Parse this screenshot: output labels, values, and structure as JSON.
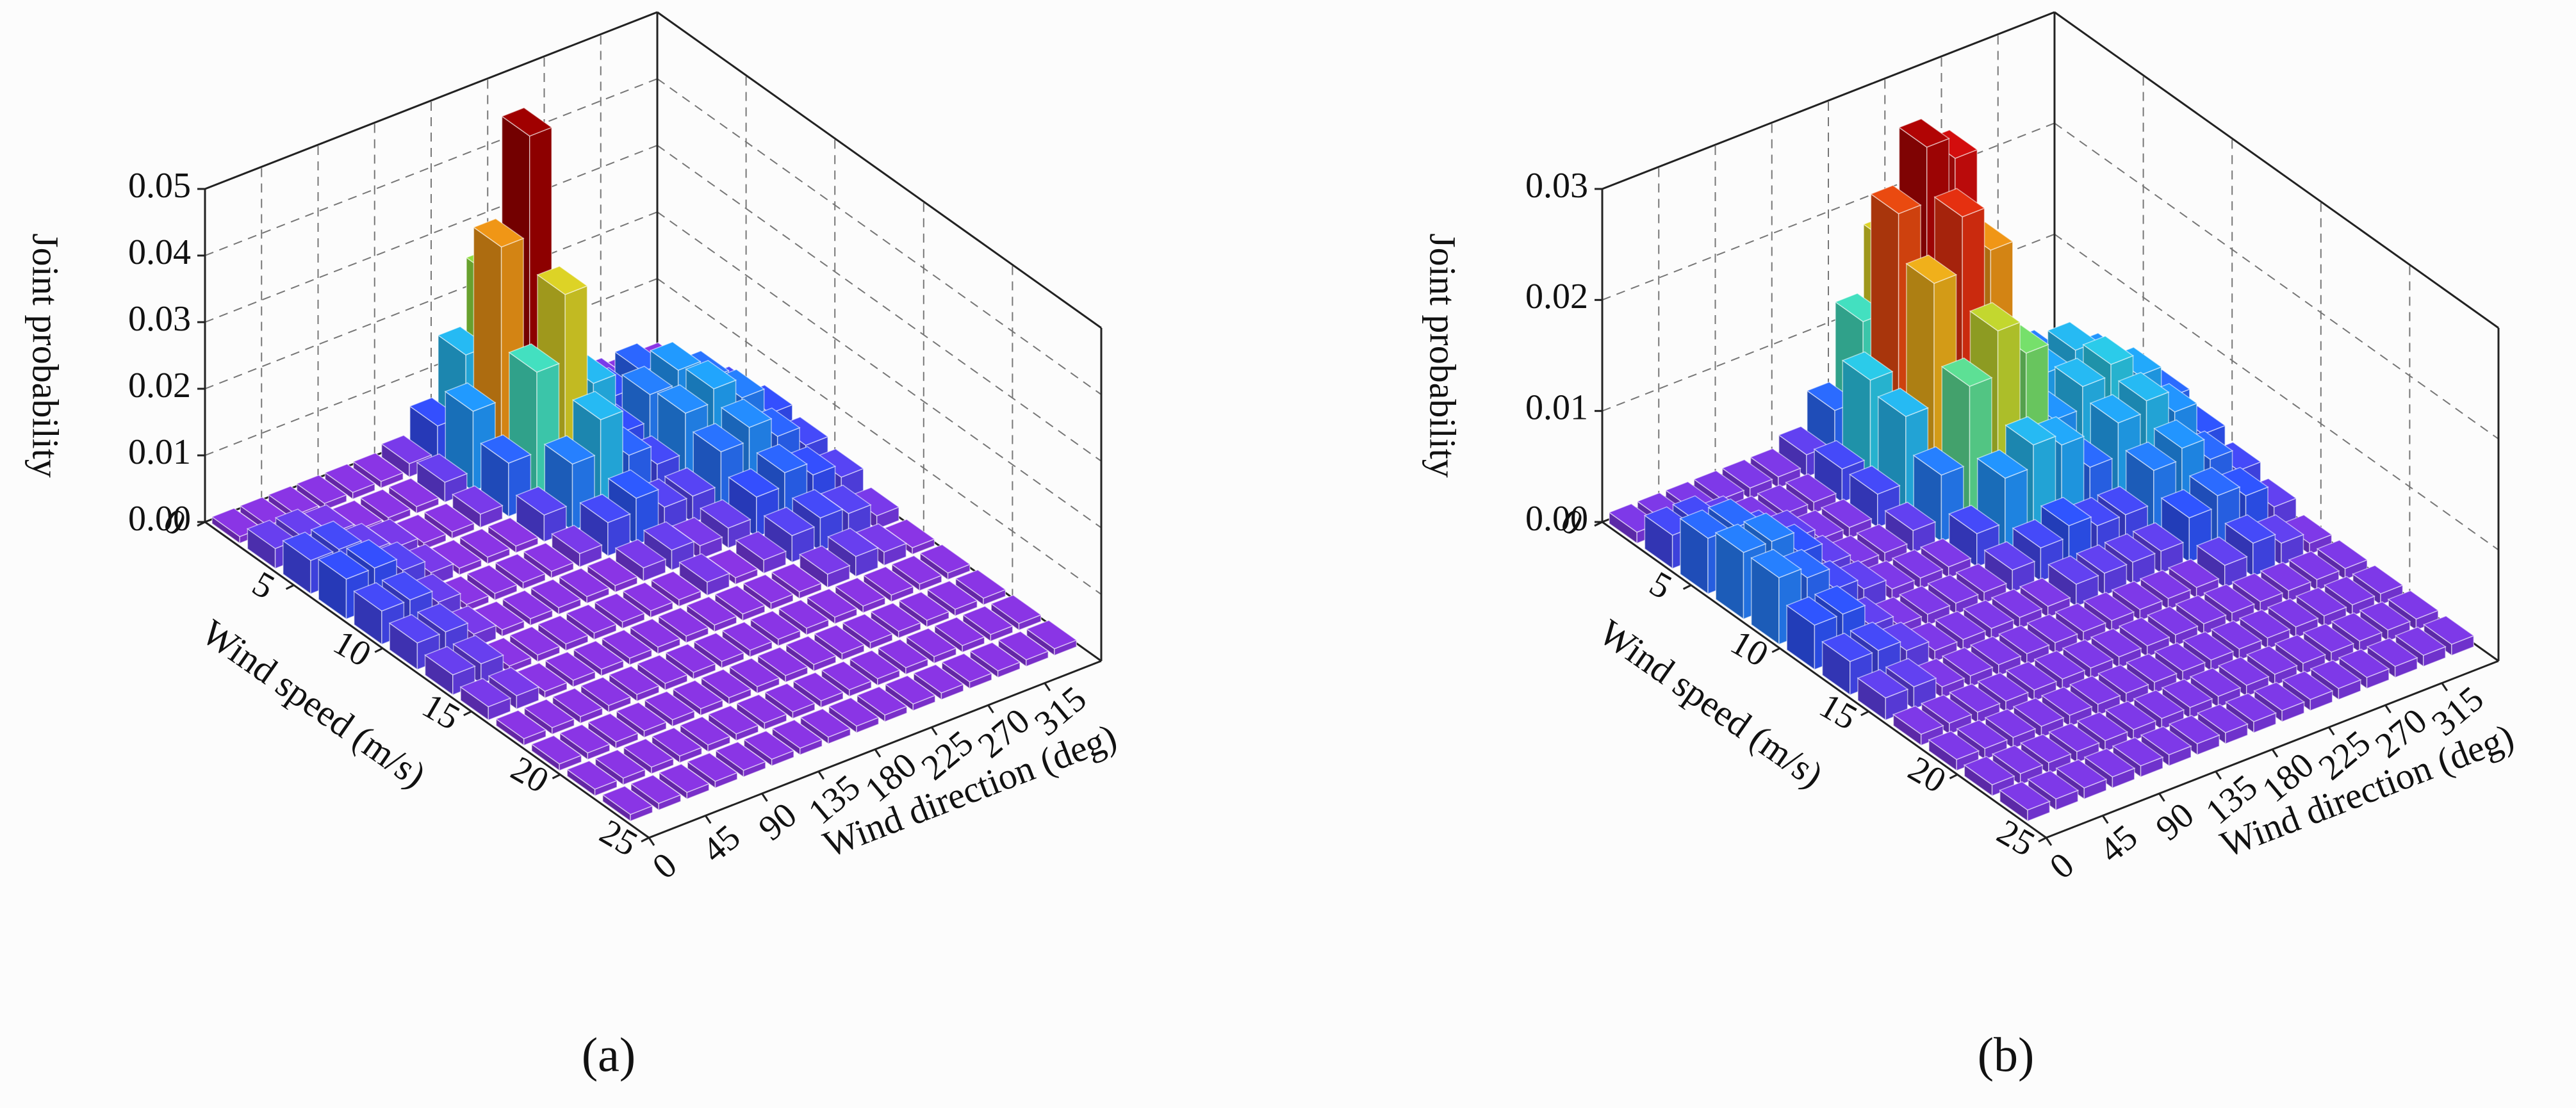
{
  "chart_data": [
    {
      "type": "bar3d",
      "caption": "(a)",
      "x_label": "Wind speed (m/s)",
      "y_label": "Wind direction (deg)",
      "z_label": "Joint probability",
      "xlim": [
        0,
        25
      ],
      "xticks": [
        0,
        5,
        10,
        15,
        20,
        25
      ],
      "ylim": [
        0,
        360
      ],
      "yticks": [
        0,
        45,
        90,
        135,
        180,
        225,
        270,
        315
      ],
      "zlim": [
        0,
        0.05
      ],
      "zticks": [
        {
          "value": 0,
          "label": "0.00"
        },
        {
          "value": 0.01,
          "label": "0.01"
        },
        {
          "value": 0.02,
          "label": "0.02"
        },
        {
          "value": 0.03,
          "label": "0.03"
        },
        {
          "value": 0.04,
          "label": "0.04"
        },
        {
          "value": 0.05,
          "label": "0.05"
        }
      ],
      "grid": true,
      "colormap": [
        "#9b30e0",
        "#3050ff",
        "#20a0ff",
        "#30e0e0",
        "#90e040",
        "#f0d020",
        "#f07010",
        "#e01010",
        "#a00000"
      ],
      "speed_bins": [
        0,
        2,
        4,
        6,
        8,
        10,
        12,
        14,
        16,
        18,
        20,
        22,
        24
      ],
      "direction_bins": [
        0,
        22.5,
        45,
        67.5,
        90,
        112.5,
        135,
        157.5,
        180,
        202.5,
        225,
        247.5,
        270,
        292.5,
        315,
        337.5,
        360
      ],
      "values": [
        [
          0.001,
          0.001,
          0.001,
          0.001,
          0.001,
          0.001,
          0.002,
          0.006,
          0.015,
          0.025,
          0.012,
          0.003,
          0.002,
          0.002,
          0.001,
          0.001
        ],
        [
          0.003,
          0.003,
          0.002,
          0.001,
          0.001,
          0.001,
          0.003,
          0.012,
          0.035,
          0.05,
          0.022,
          0.006,
          0.006,
          0.008,
          0.005,
          0.003
        ],
        [
          0.005,
          0.005,
          0.003,
          0.002,
          0.001,
          0.001,
          0.002,
          0.008,
          0.02,
          0.03,
          0.015,
          0.006,
          0.01,
          0.012,
          0.009,
          0.005
        ],
        [
          0.006,
          0.006,
          0.004,
          0.002,
          0.001,
          0.001,
          0.001,
          0.004,
          0.01,
          0.015,
          0.008,
          0.005,
          0.011,
          0.013,
          0.01,
          0.006
        ],
        [
          0.005,
          0.005,
          0.003,
          0.001,
          0.001,
          0.001,
          0.001,
          0.002,
          0.005,
          0.007,
          0.004,
          0.004,
          0.009,
          0.011,
          0.008,
          0.005
        ],
        [
          0.004,
          0.004,
          0.002,
          0.001,
          0.001,
          0.001,
          0.001,
          0.001,
          0.002,
          0.003,
          0.002,
          0.003,
          0.006,
          0.008,
          0.006,
          0.004
        ],
        [
          0.003,
          0.003,
          0.001,
          0.001,
          0.001,
          0.001,
          0.001,
          0.001,
          0.001,
          0.002,
          0.001,
          0.002,
          0.004,
          0.005,
          0.004,
          0.002
        ],
        [
          0.002,
          0.002,
          0.001,
          0.001,
          0.001,
          0.001,
          0.001,
          0.001,
          0.001,
          0.001,
          0.001,
          0.001,
          0.002,
          0.003,
          0.002,
          0.001
        ],
        [
          0.001,
          0.001,
          0.001,
          0.001,
          0.001,
          0.001,
          0.001,
          0.001,
          0.001,
          0.001,
          0.001,
          0.001,
          0.001,
          0.001,
          0.001,
          0.001
        ],
        [
          0.001,
          0.001,
          0.001,
          0.001,
          0.001,
          0.001,
          0.001,
          0.001,
          0.001,
          0.001,
          0.001,
          0.001,
          0.001,
          0.001,
          0.001,
          0.001
        ],
        [
          0.001,
          0.001,
          0.001,
          0.001,
          0.001,
          0.001,
          0.001,
          0.001,
          0.001,
          0.001,
          0.001,
          0.001,
          0.001,
          0.001,
          0.001,
          0.001
        ],
        [
          0.001,
          0.001,
          0.001,
          0.001,
          0.001,
          0.001,
          0.001,
          0.001,
          0.001,
          0.001,
          0.001,
          0.001,
          0.001,
          0.001,
          0.001,
          0.001
        ]
      ]
    },
    {
      "type": "bar3d",
      "caption": "(b)",
      "x_label": "Wind speed (m/s)",
      "y_label": "Wind direction (deg)",
      "z_label": "Joint probability",
      "xlim": [
        0,
        25
      ],
      "xticks": [
        0,
        5,
        10,
        15,
        20,
        25
      ],
      "ylim": [
        0,
        360
      ],
      "yticks": [
        0,
        45,
        90,
        135,
        180,
        225,
        270,
        315
      ],
      "zlim": [
        0,
        0.03
      ],
      "zticks": [
        {
          "value": 0,
          "label": "0.00"
        },
        {
          "value": 0.01,
          "label": "0.01"
        },
        {
          "value": 0.02,
          "label": "0.02"
        },
        {
          "value": 0.03,
          "label": "0.03"
        }
      ],
      "grid": true,
      "colormap": [
        "#9b30e0",
        "#3050ff",
        "#20a0ff",
        "#30e0e0",
        "#90e040",
        "#f0d020",
        "#f07010",
        "#e01010",
        "#a00000"
      ],
      "speed_bins": [
        0,
        2,
        4,
        6,
        8,
        10,
        12,
        14,
        16,
        18,
        20,
        22,
        24
      ],
      "direction_bins": [
        0,
        22.5,
        45,
        67.5,
        90,
        112.5,
        135,
        157.5,
        180,
        202.5,
        225,
        247.5,
        270,
        292.5,
        315,
        337.5,
        360
      ],
      "values": [
        [
          0.001,
          0.001,
          0.001,
          0.001,
          0.001,
          0.001,
          0.002,
          0.005,
          0.012,
          0.018,
          0.014,
          0.004,
          0.002,
          0.002,
          0.001,
          0.001
        ],
        [
          0.003,
          0.003,
          0.002,
          0.001,
          0.001,
          0.001,
          0.003,
          0.01,
          0.024,
          0.029,
          0.027,
          0.01,
          0.005,
          0.006,
          0.004,
          0.002
        ],
        [
          0.005,
          0.005,
          0.003,
          0.002,
          0.001,
          0.001,
          0.003,
          0.009,
          0.02,
          0.025,
          0.021,
          0.009,
          0.008,
          0.009,
          0.007,
          0.004
        ],
        [
          0.006,
          0.006,
          0.004,
          0.002,
          0.001,
          0.001,
          0.002,
          0.006,
          0.013,
          0.017,
          0.014,
          0.007,
          0.009,
          0.01,
          0.008,
          0.005
        ],
        [
          0.006,
          0.005,
          0.003,
          0.002,
          0.001,
          0.001,
          0.001,
          0.003,
          0.007,
          0.009,
          0.008,
          0.005,
          0.008,
          0.009,
          0.007,
          0.004
        ],
        [
          0.004,
          0.004,
          0.002,
          0.001,
          0.001,
          0.001,
          0.001,
          0.002,
          0.003,
          0.004,
          0.003,
          0.003,
          0.006,
          0.007,
          0.005,
          0.003
        ],
        [
          0.003,
          0.003,
          0.002,
          0.001,
          0.001,
          0.001,
          0.001,
          0.001,
          0.002,
          0.002,
          0.002,
          0.002,
          0.004,
          0.005,
          0.004,
          0.002
        ],
        [
          0.002,
          0.002,
          0.001,
          0.001,
          0.001,
          0.001,
          0.001,
          0.001,
          0.001,
          0.001,
          0.001,
          0.001,
          0.002,
          0.003,
          0.002,
          0.001
        ],
        [
          0.001,
          0.001,
          0.001,
          0.001,
          0.001,
          0.001,
          0.001,
          0.001,
          0.001,
          0.001,
          0.001,
          0.001,
          0.001,
          0.001,
          0.001,
          0.001
        ],
        [
          0.001,
          0.001,
          0.001,
          0.001,
          0.001,
          0.001,
          0.001,
          0.001,
          0.001,
          0.001,
          0.001,
          0.001,
          0.001,
          0.001,
          0.001,
          0.001
        ],
        [
          0.001,
          0.001,
          0.001,
          0.001,
          0.001,
          0.001,
          0.001,
          0.001,
          0.001,
          0.001,
          0.001,
          0.001,
          0.001,
          0.001,
          0.001,
          0.001
        ],
        [
          0.001,
          0.001,
          0.001,
          0.001,
          0.001,
          0.001,
          0.001,
          0.001,
          0.001,
          0.001,
          0.001,
          0.001,
          0.001,
          0.001,
          0.001,
          0.001
        ]
      ]
    }
  ]
}
